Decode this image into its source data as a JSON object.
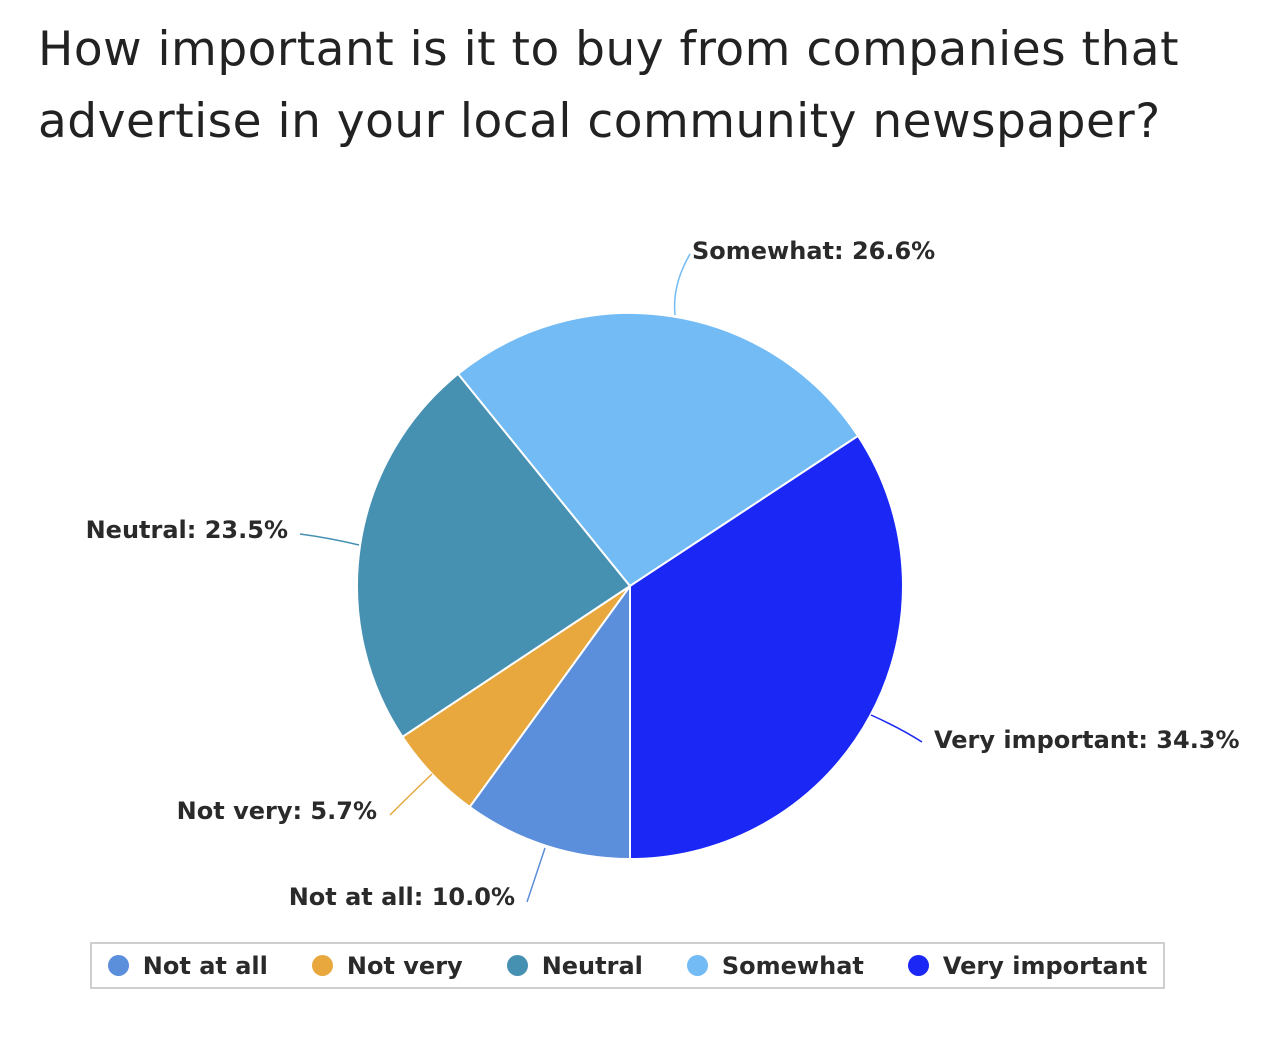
{
  "chart_data": {
    "type": "pie",
    "title": "How important is it to buy from companies that advertise in your local community newspaper?",
    "categories": [
      "Not at all",
      "Not very",
      "Neutral",
      "Somewhat",
      "Very important"
    ],
    "values": [
      10.0,
      5.7,
      23.5,
      26.6,
      34.3
    ],
    "unit": "%",
    "colors": [
      "#5b8edb",
      "#e8a83e",
      "#4690b2",
      "#72bbf5",
      "#1a27f5"
    ],
    "labels": [
      "Not at all: 10.0%",
      "Not very: 5.7%",
      "Neutral: 23.5%",
      "Somewhat: 26.6%",
      "Very important: 34.3%"
    ],
    "legend_position": "bottom"
  }
}
